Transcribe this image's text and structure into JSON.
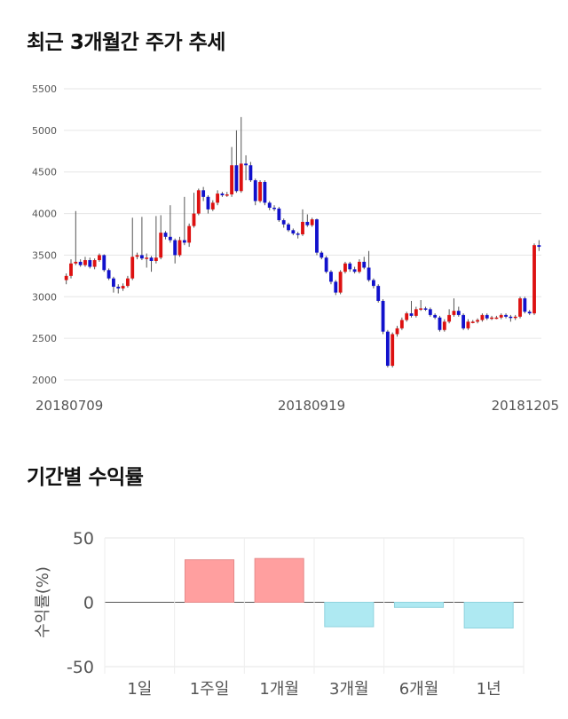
{
  "sections": {
    "price_title": "최근 3개월간 주가 추세",
    "returns_title": "기간별 수익률"
  },
  "chart_data": [
    {
      "type": "candlestick",
      "title": "최근 3개월간 주가 추세",
      "ylim": [
        2000,
        5500
      ],
      "y_ticks": [
        2000,
        2500,
        3000,
        3500,
        4000,
        4500,
        5000,
        5500
      ],
      "x_tick_labels": [
        "20180709",
        "20180919",
        "20181205"
      ],
      "colors": {
        "up": "#dd1111",
        "down": "#1111cc",
        "wick": "#555555"
      },
      "candles": [
        [
          3200,
          3250,
          3150,
          3280
        ],
        [
          3250,
          3400,
          3220,
          3450
        ],
        [
          3400,
          3420,
          3380,
          4030
        ],
        [
          3420,
          3380,
          3360,
          3450
        ],
        [
          3380,
          3440,
          3360,
          3480
        ],
        [
          3440,
          3360,
          3340,
          3470
        ],
        [
          3360,
          3440,
          3330,
          3460
        ],
        [
          3440,
          3500,
          3420,
          3520
        ],
        [
          3500,
          3320,
          3300,
          3510
        ],
        [
          3320,
          3220,
          3200,
          3340
        ],
        [
          3220,
          3120,
          3050,
          3240
        ],
        [
          3120,
          3100,
          3040,
          3150
        ],
        [
          3100,
          3130,
          3070,
          3160
        ],
        [
          3130,
          3220,
          3110,
          3250
        ],
        [
          3220,
          3480,
          3200,
          3950
        ],
        [
          3480,
          3500,
          3450,
          3530
        ],
        [
          3500,
          3460,
          3440,
          3960
        ],
        [
          3460,
          3470,
          3350,
          3520
        ],
        [
          3470,
          3430,
          3300,
          3490
        ],
        [
          3430,
          3470,
          3400,
          3970
        ],
        [
          3470,
          3770,
          3450,
          3980
        ],
        [
          3770,
          3720,
          3690,
          3790
        ],
        [
          3720,
          3680,
          3650,
          4100
        ],
        [
          3680,
          3500,
          3400,
          3700
        ],
        [
          3500,
          3680,
          3480,
          3720
        ],
        [
          3680,
          3650,
          3620,
          4200
        ],
        [
          3650,
          3850,
          3600,
          3880
        ],
        [
          3850,
          4000,
          3830,
          4250
        ],
        [
          4000,
          4280,
          3980,
          4300
        ],
        [
          4280,
          4200,
          4150,
          4320
        ],
        [
          4200,
          4050,
          4000,
          4220
        ],
        [
          4050,
          4130,
          4030,
          4160
        ],
        [
          4130,
          4240,
          4100,
          4280
        ],
        [
          4240,
          4220,
          4200,
          4260
        ],
        [
          4220,
          4230,
          4200,
          4260
        ],
        [
          4230,
          4580,
          4200,
          4800
        ],
        [
          4580,
          4270,
          4250,
          5000
        ],
        [
          4270,
          4600,
          4250,
          5160
        ],
        [
          4600,
          4580,
          4400,
          4700
        ],
        [
          4580,
          4400,
          4380,
          4620
        ],
        [
          4400,
          4150,
          4100,
          4420
        ],
        [
          4150,
          4380,
          4130,
          4400
        ],
        [
          4380,
          4130,
          4100,
          4400
        ],
        [
          4130,
          4070,
          4040,
          4150
        ],
        [
          4070,
          4060,
          4030,
          4100
        ],
        [
          4060,
          3920,
          3900,
          4080
        ],
        [
          3920,
          3870,
          3830,
          3940
        ],
        [
          3870,
          3800,
          3780,
          3890
        ],
        [
          3800,
          3760,
          3740,
          3820
        ],
        [
          3760,
          3750,
          3700,
          3780
        ],
        [
          3750,
          3900,
          3730,
          4050
        ],
        [
          3900,
          3860,
          3840,
          3990
        ],
        [
          3860,
          3930,
          3840,
          3950
        ],
        [
          3930,
          3530,
          3500,
          3940
        ],
        [
          3530,
          3470,
          3450,
          3550
        ],
        [
          3470,
          3300,
          3280,
          3490
        ],
        [
          3300,
          3180,
          3150,
          3320
        ],
        [
          3180,
          3050,
          3020,
          3200
        ],
        [
          3050,
          3300,
          3030,
          3320
        ],
        [
          3300,
          3400,
          3280,
          3420
        ],
        [
          3400,
          3330,
          3300,
          3420
        ],
        [
          3330,
          3300,
          3280,
          3360
        ],
        [
          3300,
          3420,
          3280,
          3450
        ],
        [
          3420,
          3350,
          3330,
          3480
        ],
        [
          3350,
          3200,
          3180,
          3550
        ],
        [
          3200,
          3130,
          3100,
          3220
        ],
        [
          3130,
          2950,
          2930,
          3150
        ],
        [
          2950,
          2580,
          2550,
          2970
        ],
        [
          2580,
          2170,
          2150,
          2600
        ],
        [
          2170,
          2550,
          2150,
          2570
        ],
        [
          2550,
          2620,
          2520,
          2650
        ],
        [
          2620,
          2720,
          2600,
          2750
        ],
        [
          2720,
          2800,
          2700,
          2820
        ],
        [
          2800,
          2770,
          2750,
          2950
        ],
        [
          2770,
          2850,
          2750,
          2880
        ],
        [
          2850,
          2860,
          2830,
          2960
        ],
        [
          2860,
          2850,
          2830,
          2880
        ],
        [
          2850,
          2780,
          2760,
          2870
        ],
        [
          2780,
          2750,
          2730,
          2800
        ],
        [
          2750,
          2600,
          2580,
          2770
        ],
        [
          2600,
          2700,
          2580,
          2730
        ],
        [
          2700,
          2780,
          2680,
          2850
        ],
        [
          2780,
          2830,
          2760,
          2980
        ],
        [
          2830,
          2780,
          2760,
          2880
        ],
        [
          2780,
          2620,
          2600,
          2800
        ],
        [
          2620,
          2700,
          2600,
          2730
        ],
        [
          2700,
          2700,
          2680,
          2720
        ],
        [
          2700,
          2720,
          2680,
          2740
        ],
        [
          2720,
          2780,
          2700,
          2800
        ],
        [
          2780,
          2740,
          2720,
          2800
        ],
        [
          2740,
          2750,
          2720,
          2770
        ],
        [
          2750,
          2750,
          2730,
          2770
        ],
        [
          2750,
          2780,
          2730,
          2800
        ],
        [
          2780,
          2760,
          2740,
          2800
        ],
        [
          2760,
          2750,
          2700,
          2780
        ],
        [
          2750,
          2760,
          2720,
          2780
        ],
        [
          2760,
          2980,
          2740,
          3000
        ],
        [
          2980,
          2820,
          2800,
          3000
        ],
        [
          2820,
          2800,
          2780,
          2840
        ],
        [
          2800,
          3620,
          2780,
          3640
        ],
        [
          3620,
          3600,
          3550,
          3680
        ]
      ]
    },
    {
      "type": "bar",
      "title": "기간별 수익률",
      "ylabel": "수익률(%)",
      "ylim": [
        -50,
        50
      ],
      "y_ticks": [
        50,
        0,
        -50
      ],
      "categories": [
        "1일",
        "1주일",
        "1개월",
        "3개월",
        "6개월",
        "1년"
      ],
      "values": [
        0,
        33,
        34,
        -19,
        -4,
        -20
      ],
      "colors": {
        "positive": "#ff9f9f",
        "negative": "#aee9f2"
      }
    }
  ]
}
